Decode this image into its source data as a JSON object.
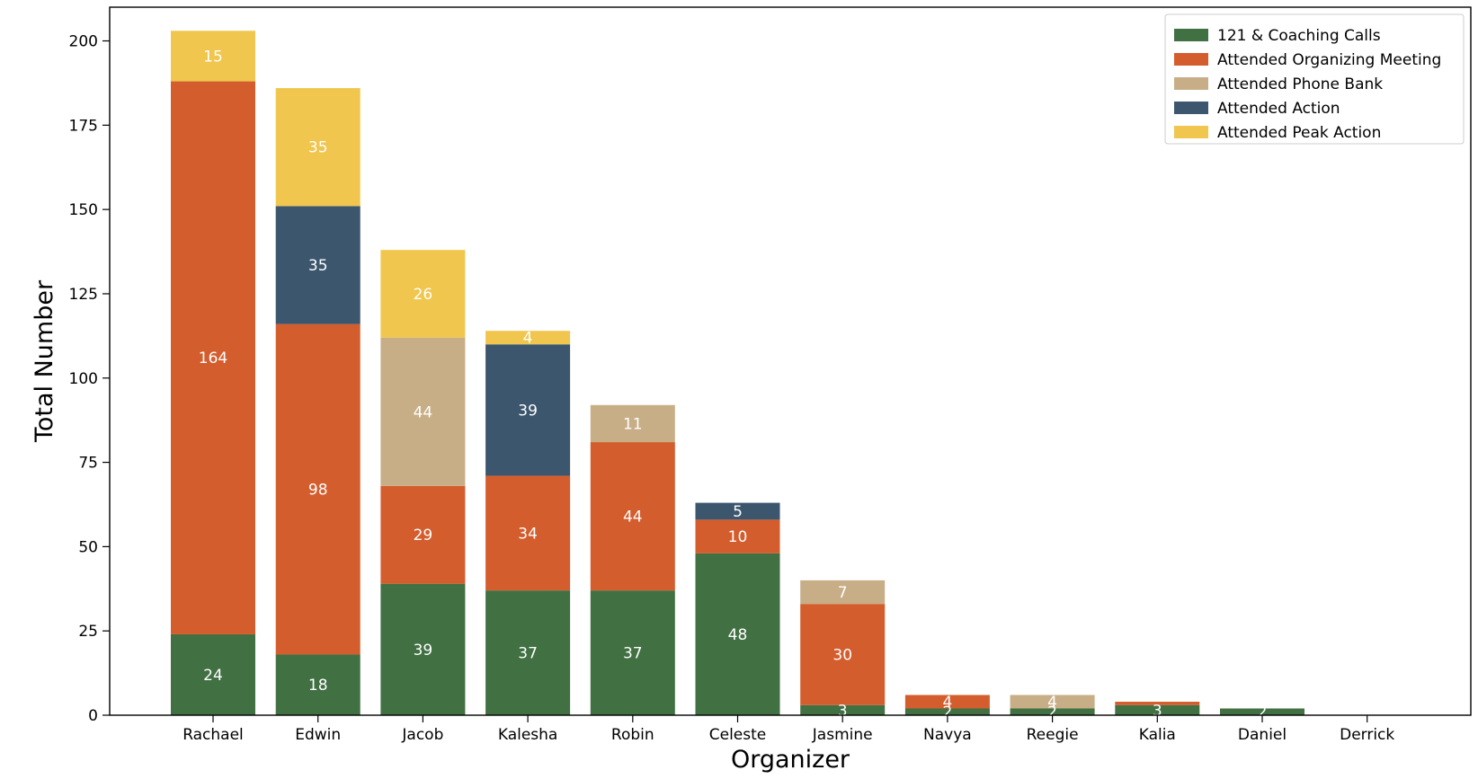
{
  "chart_data": {
    "type": "bar",
    "stacked": true,
    "xlabel": "Organizer",
    "ylabel": "Total Number",
    "ylim": [
      0,
      210
    ],
    "yticks": [
      0,
      25,
      50,
      75,
      100,
      125,
      150,
      175,
      200
    ],
    "grid": false,
    "legend_position": "top-right",
    "categories": [
      "Rachael",
      "Edwin",
      "Jacob",
      "Kalesha",
      "Robin",
      "Celeste",
      "Jasmine",
      "Navya",
      "Reegie",
      "Kalia",
      "Daniel",
      "Derrick"
    ],
    "series": [
      {
        "name": "121 & Coaching Calls",
        "color": "#417043",
        "values": [
          24,
          18,
          39,
          37,
          37,
          48,
          3,
          2,
          2,
          3,
          2,
          0
        ],
        "labels": [
          "24",
          "18",
          "39",
          "37",
          "37",
          "48",
          "3",
          "2",
          "2",
          "3",
          "2",
          ""
        ]
      },
      {
        "name": "Attended Organizing Meeting",
        "color": "#d45d2e",
        "values": [
          164,
          98,
          29,
          34,
          44,
          10,
          30,
          4,
          0,
          1,
          0,
          0
        ],
        "labels": [
          "164",
          "98",
          "29",
          "34",
          "44",
          "10",
          "30",
          "4",
          "",
          "",
          "",
          ""
        ]
      },
      {
        "name": "Attended Phone Bank",
        "color": "#c8ae87",
        "values": [
          0,
          0,
          44,
          0,
          11,
          0,
          7,
          0,
          4,
          0,
          0,
          0
        ],
        "labels": [
          "",
          "",
          "44",
          "",
          "11",
          "",
          "7",
          "",
          "4",
          "",
          "",
          ""
        ]
      },
      {
        "name": "Attended Action",
        "color": "#3c566d",
        "values": [
          0,
          35,
          0,
          39,
          0,
          5,
          0,
          0,
          0,
          0,
          0,
          0
        ],
        "labels": [
          "",
          "35",
          "",
          "39",
          "",
          "5",
          "",
          "",
          "",
          "",
          "",
          ""
        ]
      },
      {
        "name": "Attended Peak Action",
        "color": "#f0c64e",
        "values": [
          15,
          35,
          26,
          4,
          0,
          0,
          0,
          0,
          0,
          0,
          0,
          0
        ],
        "labels": [
          "15",
          "35",
          "26",
          "4",
          "",
          "",
          "",
          "",
          "",
          "",
          "",
          ""
        ]
      }
    ]
  }
}
